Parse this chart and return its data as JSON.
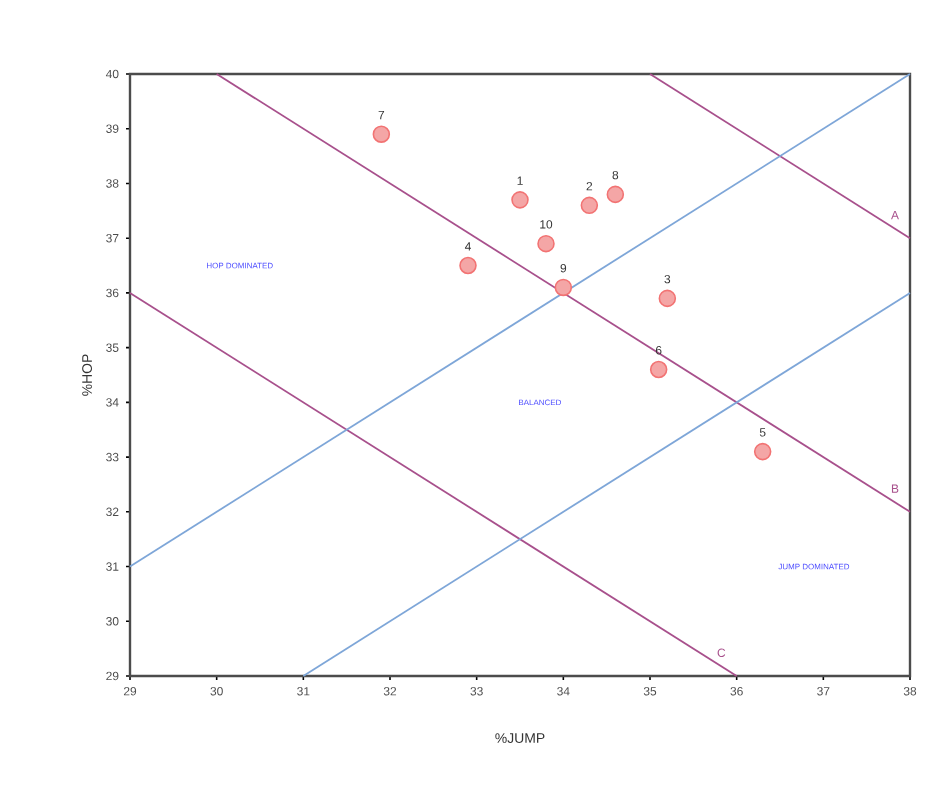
{
  "chart_data": {
    "type": "scatter",
    "xlabel": "%JUMP",
    "ylabel": "%HOP",
    "xlim": [
      29,
      38
    ],
    "ylim": [
      29,
      40
    ],
    "xticks": [
      29,
      30,
      31,
      32,
      33,
      34,
      35,
      36,
      37,
      38
    ],
    "yticks": [
      29,
      30,
      31,
      32,
      33,
      34,
      35,
      36,
      37,
      38,
      39,
      40
    ],
    "grid": false,
    "legend": false,
    "annotations": [
      "HOP DOMINATED",
      "BALANCED",
      "JUMP DOMINATED",
      {
        "text": "7",
        "x": 31.9,
        "y": 38.9
      },
      {
        "text": "1",
        "x": 33.5,
        "y": 37.7
      },
      {
        "text": "2",
        "x": 34.3,
        "y": 37.6
      },
      {
        "text": "8",
        "x": 34.6,
        "y": 37.8
      },
      {
        "text": "10",
        "x": 33.8,
        "y": 36.9
      },
      {
        "text": "4",
        "x": 32.9,
        "y": 36.5
      },
      {
        "text": "9",
        "x": 34.0,
        "y": 36.1
      },
      {
        "text": "3",
        "x": 35.2,
        "y": 35.9
      },
      {
        "text": "6",
        "x": 35.1,
        "y": 34.6
      },
      {
        "text": "5",
        "x": 36.3,
        "y": 33.1
      }
    ],
    "series": [
      {
        "color": "#f08080",
        "marker": "circle",
        "x": [
          31.9,
          33.5,
          34.3,
          34.6,
          33.8,
          32.9,
          34.0,
          35.2,
          35.1,
          36.3
        ],
        "values": [
          38.9,
          37.7,
          37.6,
          37.8,
          36.9,
          36.5,
          36.1,
          35.9,
          34.6,
          33.1
        ]
      },
      {
        "type": "line",
        "name": "A",
        "color": "#a8508c",
        "x": [
          35,
          38
        ],
        "values": [
          40,
          37
        ],
        "marker": "none"
      },
      {
        "type": "line",
        "name": "B",
        "color": "#a8508c",
        "x": [
          30,
          38
        ],
        "values": [
          40,
          32
        ],
        "marker": "none"
      },
      {
        "type": "line",
        "name": "C",
        "color": "#a8508c",
        "x": [
          29,
          36
        ],
        "values": [
          36,
          29
        ],
        "marker": "none"
      },
      {
        "type": "line",
        "color": "#7ea6d8",
        "x": [
          29,
          38
        ],
        "values": [
          31,
          40
        ],
        "marker": "none"
      },
      {
        "type": "line",
        "color": "#7ea6d8",
        "x": [
          31,
          38
        ],
        "values": [
          29,
          36
        ],
        "marker": "none"
      }
    ]
  }
}
